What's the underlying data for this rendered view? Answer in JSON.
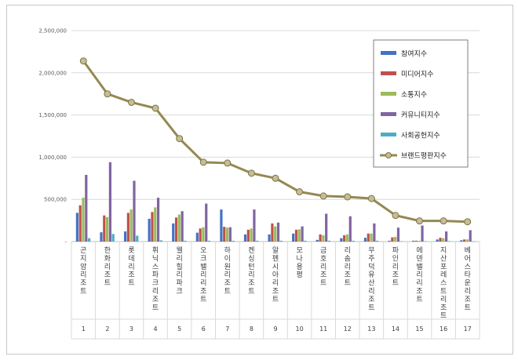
{
  "chart_data": {
    "type": "bar",
    "title": "",
    "xlabel": "",
    "ylabel": "",
    "ylim": [
      0,
      2500000
    ],
    "yticks": [
      "2,500,000",
      "2,000,000",
      "1,500,000",
      "1,000,000",
      "500,000",
      "-"
    ],
    "categories": [
      "곤지암리조트",
      "한화리조트",
      "롯데리조트",
      "휘닉스파크리조트",
      "웰리힐리파크",
      "오크밸리리조트",
      "하이원리조트",
      "켄싱턴리조트",
      "알펜시아리조트",
      "모나용평",
      "금호리조트",
      "리솜리조트",
      "무주덕유산리조트",
      "파인리조트",
      "에덴밸리리조트",
      "지산포레스트리조트",
      "베어스타운리조트"
    ],
    "ranks": [
      "1",
      "2",
      "3",
      "4",
      "5",
      "6",
      "7",
      "8",
      "9",
      "10",
      "11",
      "12",
      "13",
      "14",
      "15",
      "16",
      "17"
    ],
    "series": [
      {
        "name": "참여지수",
        "color": "#4472C4",
        "values": [
          340000,
          110000,
          120000,
          270000,
          215000,
          105000,
          380000,
          85000,
          85000,
          95000,
          20000,
          40000,
          45000,
          10000,
          10000,
          25000,
          15000
        ]
      },
      {
        "name": "미디어지수",
        "color": "#C0504D",
        "values": [
          430000,
          310000,
          340000,
          350000,
          285000,
          155000,
          175000,
          140000,
          215000,
          140000,
          85000,
          75000,
          95000,
          50000,
          10000,
          45000,
          25000
        ]
      },
      {
        "name": "소통지수",
        "color": "#9BBB59",
        "values": [
          520000,
          290000,
          380000,
          405000,
          320000,
          170000,
          165000,
          155000,
          180000,
          145000,
          75000,
          85000,
          95000,
          55000,
          10000,
          40000,
          25000
        ]
      },
      {
        "name": "커뮤니티지수",
        "color": "#8064A2",
        "values": [
          790000,
          940000,
          720000,
          520000,
          360000,
          450000,
          170000,
          380000,
          225000,
          180000,
          330000,
          300000,
          215000,
          165000,
          190000,
          120000,
          135000
        ]
      },
      {
        "name": "사회공헌지수",
        "color": "#4BACC6",
        "values": [
          40000,
          90000,
          70000,
          15000,
          10000,
          10000,
          10000,
          10000,
          10000,
          10000,
          10000,
          10000,
          10000,
          5000,
          5000,
          5000,
          5000
        ]
      }
    ],
    "line": {
      "name": "브랜드평판지수",
      "color": "#938953",
      "values": [
        2140000,
        1750000,
        1650000,
        1580000,
        1220000,
        940000,
        930000,
        810000,
        750000,
        590000,
        540000,
        530000,
        510000,
        310000,
        245000,
        245000,
        235000
      ]
    },
    "legend": "top-right",
    "grid": true
  }
}
